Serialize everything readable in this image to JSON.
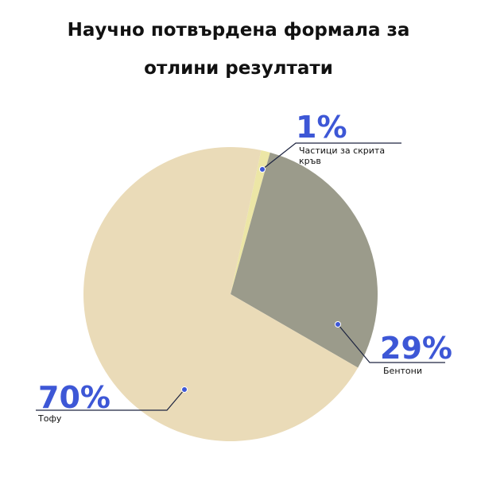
{
  "chart_data": {
    "type": "pie",
    "title": "Научно потвърдена формала за отлини резултати",
    "categories": [
      "Частици за скрита кръв",
      "Бентони",
      "Тофу"
    ],
    "values": [
      1,
      29,
      70
    ],
    "value_labels": [
      "1%",
      "29%",
      "70%"
    ],
    "colors": [
      "#ece6a6",
      "#9b9b8b",
      "#eadbb8"
    ]
  }
}
